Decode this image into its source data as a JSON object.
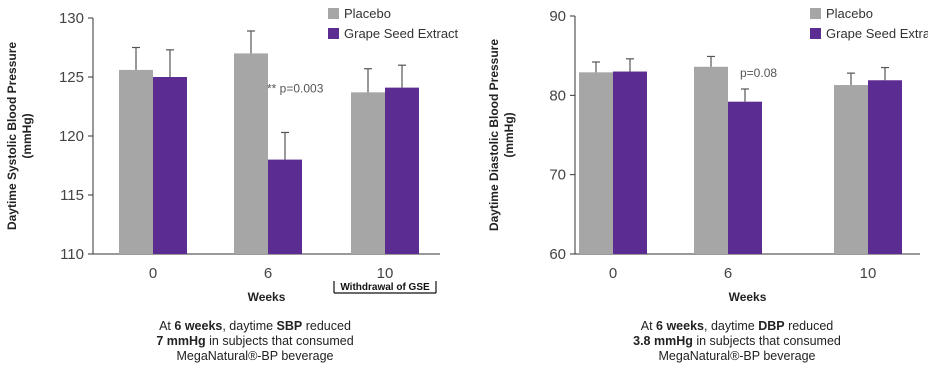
{
  "chart_data": [
    {
      "type": "bar",
      "categories": [
        "0",
        "6",
        "10"
      ],
      "xlabel": "Weeks",
      "ylabel": "Daytime Systolic Blood Pressure (mmHg)",
      "ylim": [
        110,
        130
      ],
      "yticks": [
        110,
        115,
        120,
        125,
        130
      ],
      "legend_position": "top-right",
      "series": [
        {
          "name": "Placebo",
          "color": "#a6a6a6",
          "values": [
            125.6,
            127.0,
            123.7
          ],
          "errors": [
            1.9,
            1.9,
            2.0
          ]
        },
        {
          "name": "Grape Seed Extract",
          "color": "#5b2c91",
          "values": [
            125.0,
            118.0,
            124.1
          ],
          "errors": [
            2.3,
            2.3,
            1.9
          ]
        }
      ],
      "annotations": [
        {
          "text": "** p=0.003",
          "category": "6"
        },
        {
          "text": "Withdrawal of GSE",
          "category": "10"
        }
      ],
      "caption": {
        "l1_pre": "At ",
        "l1_b1": "6 weeks",
        "l1_mid": ", daytime ",
        "l1_b2": "SBP",
        "l1_post": " reduced",
        "l2_b": "7 mmHg",
        "l2_post": " in subjects that consumed",
        "l3": "MegaNatural®-BP beverage"
      }
    },
    {
      "type": "bar",
      "categories": [
        "0",
        "6",
        "10"
      ],
      "xlabel": "Weeks",
      "ylabel": "Daytime Diastolic Blood Pressure (mmHg)",
      "ylim": [
        60,
        90
      ],
      "yticks": [
        60,
        70,
        80,
        90
      ],
      "legend_position": "top-right",
      "series": [
        {
          "name": "Placebo",
          "color": "#a6a6a6",
          "values": [
            82.9,
            83.6,
            81.3
          ],
          "errors": [
            1.3,
            1.3,
            1.5
          ]
        },
        {
          "name": "Grape Seed Extract",
          "color": "#5b2c91",
          "values": [
            83.0,
            79.2,
            81.9
          ],
          "errors": [
            1.6,
            1.6,
            1.6
          ]
        }
      ],
      "annotations": [
        {
          "text": "p=0.08",
          "category": "6"
        }
      ],
      "caption": {
        "l1_pre": "At ",
        "l1_b1": "6 weeks",
        "l1_mid": ", daytime ",
        "l1_b2": "DBP",
        "l1_post": " reduced",
        "l2_b": "3.8 mmHg",
        "l2_post": " in subjects that consumed",
        "l3": "MegaNatural®-BP beverage"
      }
    }
  ]
}
